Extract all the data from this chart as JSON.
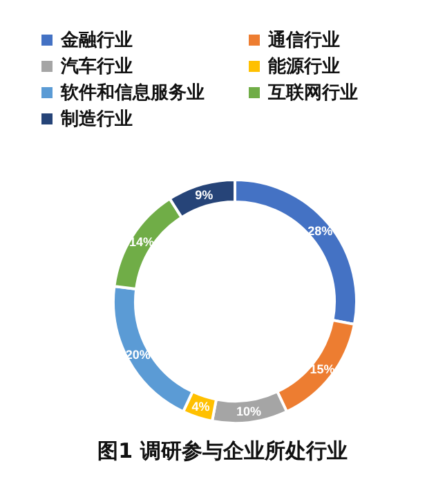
{
  "chart_data": {
    "type": "donut",
    "title": "图1 调研参与企业所处行业",
    "categories": [
      "金融行业",
      "通信行业",
      "汽车行业",
      "能源行业",
      "软件和信息服务业",
      "互联网行业",
      "制造行业"
    ],
    "values": [
      28,
      15,
      10,
      4,
      20,
      14,
      9
    ],
    "colors": [
      "#4472c4",
      "#ed7d31",
      "#a5a5a5",
      "#ffc000",
      "#5b9bd5",
      "#70ad47",
      "#264478"
    ],
    "value_labels": [
      "28%",
      "15%",
      "10%",
      "4%",
      "20%",
      "14%",
      "9%"
    ],
    "legend": "top"
  }
}
